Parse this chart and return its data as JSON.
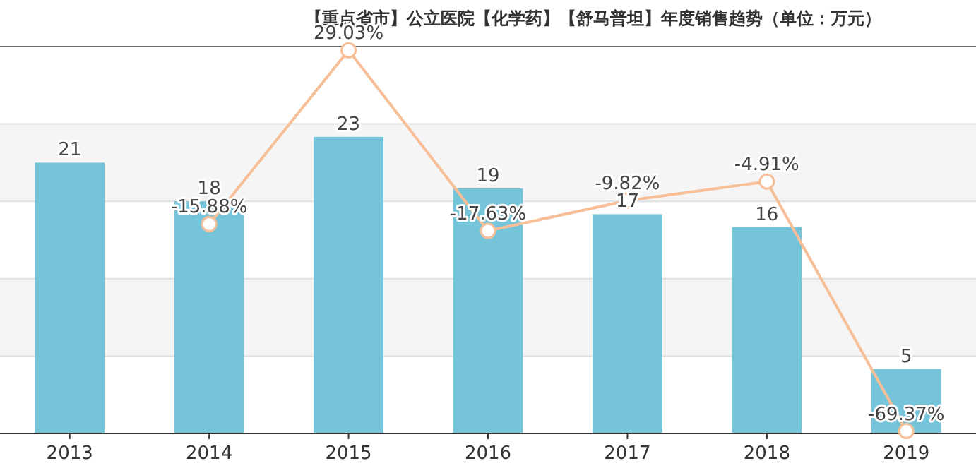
{
  "chart_data": {
    "type": "bar",
    "title": "【重点省市】公立医院【化学药】【舒马普坦】年度销售趋势（单位：万元）",
    "categories": [
      "2013",
      "2014",
      "2015",
      "2016",
      "2017",
      "2018",
      "2019"
    ],
    "series": [
      {
        "type": "bar",
        "color": "#75c4da",
        "values": [
          21,
          18,
          23,
          19,
          17,
          16,
          5
        ]
      },
      {
        "type": "line",
        "axis": "y2",
        "color": "#f7bf98",
        "marker": "circle",
        "value_labels": [
          null,
          "-15.88%",
          "29.03%",
          "-17.63%",
          "-9.82%",
          "-4.91%",
          "-69.37%"
        ],
        "values": [
          null,
          -15.88,
          29.03,
          -17.63,
          -9.82,
          -4.91,
          -69.37
        ]
      }
    ],
    "data_labels": true,
    "ylim": [
      0,
      30
    ],
    "yticks": [
      {
        "value": 0,
        "label": null
      },
      {
        "value": 6,
        "label": null
      },
      {
        "value": 12,
        "label": null
      },
      {
        "value": 18,
        "label": null
      },
      {
        "value": 24,
        "label": null
      },
      {
        "value": 30,
        "label": null
      }
    ],
    "y2lim": [
      -70,
      30
    ],
    "grid": "y",
    "tick_labels": "x"
  }
}
